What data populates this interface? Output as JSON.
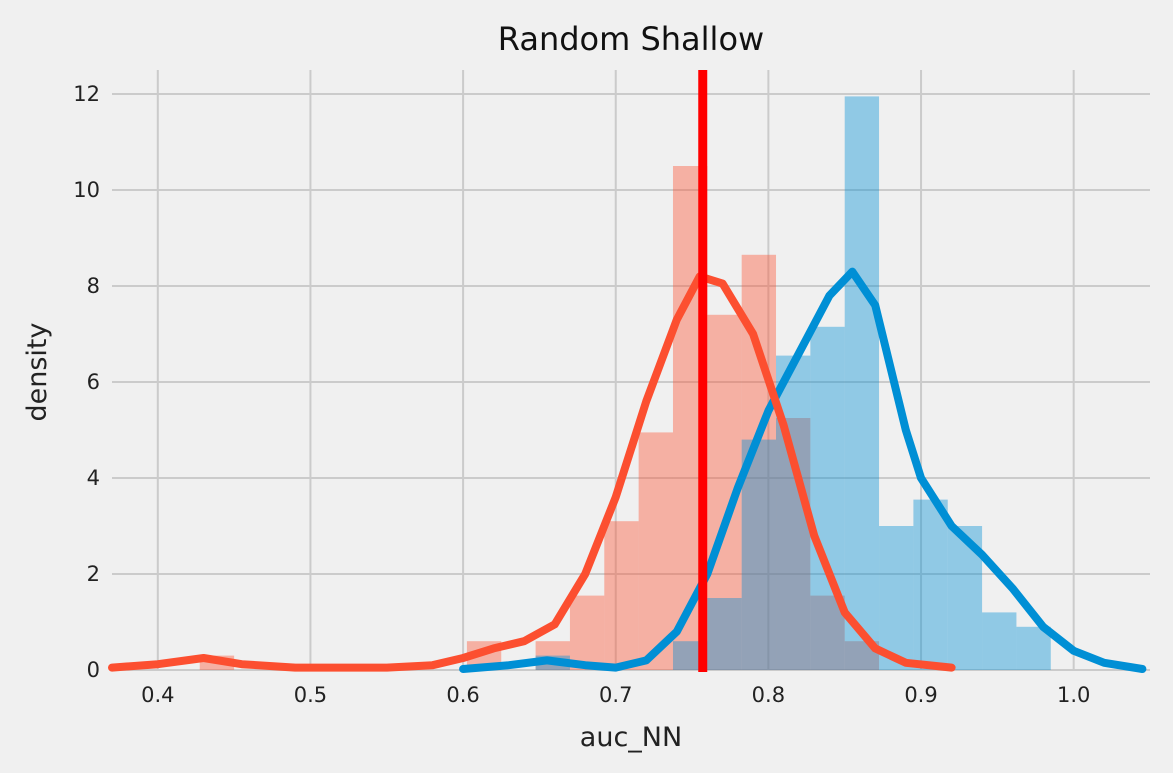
{
  "chart_data": {
    "type": "histogram",
    "title": "Random Shallow",
    "xlabel": "auc_NN",
    "ylabel": "density",
    "xlim": [
      0.37,
      1.05
    ],
    "ylim": [
      0,
      12.5
    ],
    "x_ticks": [
      "0.4",
      "0.5",
      "0.6",
      "0.7",
      "0.8",
      "0.9",
      "1.0"
    ],
    "x_tick_values": [
      0.4,
      0.5,
      0.6,
      0.7,
      0.8,
      0.9,
      1.0
    ],
    "y_ticks": [
      "0",
      "2",
      "4",
      "6",
      "8",
      "10",
      "12"
    ],
    "y_tick_values": [
      0,
      2,
      4,
      6,
      8,
      10,
      12
    ],
    "grid": true,
    "colors": {
      "background": "#f0f0f0",
      "grid": "#cbcbcb",
      "blue_line": "#008fd5",
      "blue_bars": "#8ec8e6",
      "red_line": "#fc4f30",
      "red_bars": "#f4a99c",
      "overlap_bars": "#b9979b",
      "vline": "#ff0000"
    },
    "series": [
      {
        "color": "#fc4f30",
        "bin_width": 0.0225,
        "bins": [
          {
            "x0": 0.4275,
            "h": 0.3
          },
          {
            "x0": 0.6025,
            "h": 0.6
          },
          {
            "x0": 0.6475,
            "h": 0.6
          },
          {
            "x0": 0.67,
            "h": 1.55
          },
          {
            "x0": 0.6925,
            "h": 3.1
          },
          {
            "x0": 0.715,
            "h": 4.95
          },
          {
            "x0": 0.7375,
            "h": 10.5
          },
          {
            "x0": 0.76,
            "h": 7.4
          },
          {
            "x0": 0.7825,
            "h": 8.65
          },
          {
            "x0": 0.805,
            "h": 5.25
          },
          {
            "x0": 0.8275,
            "h": 1.55
          },
          {
            "x0": 0.85,
            "h": 0.6
          }
        ],
        "kde": [
          [
            0.37,
            0.05
          ],
          [
            0.4,
            0.12
          ],
          [
            0.43,
            0.25
          ],
          [
            0.455,
            0.12
          ],
          [
            0.49,
            0.05
          ],
          [
            0.55,
            0.05
          ],
          [
            0.58,
            0.1
          ],
          [
            0.6,
            0.25
          ],
          [
            0.62,
            0.45
          ],
          [
            0.64,
            0.6
          ],
          [
            0.66,
            0.95
          ],
          [
            0.68,
            2.0
          ],
          [
            0.7,
            3.6
          ],
          [
            0.72,
            5.6
          ],
          [
            0.74,
            7.3
          ],
          [
            0.755,
            8.2
          ],
          [
            0.77,
            8.05
          ],
          [
            0.79,
            7.0
          ],
          [
            0.81,
            5.1
          ],
          [
            0.83,
            2.8
          ],
          [
            0.85,
            1.2
          ],
          [
            0.87,
            0.45
          ],
          [
            0.89,
            0.15
          ],
          [
            0.92,
            0.05
          ]
        ]
      },
      {
        "color": "#008fd5",
        "bin_width": 0.0225,
        "bins": [
          {
            "x0": 0.6475,
            "h": 0.3
          },
          {
            "x0": 0.7375,
            "h": 0.6
          },
          {
            "x0": 0.76,
            "h": 1.5
          },
          {
            "x0": 0.7825,
            "h": 4.8
          },
          {
            "x0": 0.805,
            "h": 6.55
          },
          {
            "x0": 0.8275,
            "h": 7.15
          },
          {
            "x0": 0.85,
            "h": 11.95
          },
          {
            "x0": 0.8725,
            "h": 3.0
          },
          {
            "x0": 0.895,
            "h": 3.55
          },
          {
            "x0": 0.9175,
            "h": 3.0
          },
          {
            "x0": 0.94,
            "h": 1.2
          },
          {
            "x0": 0.9625,
            "h": 0.9
          }
        ],
        "kde": [
          [
            0.6,
            0.02
          ],
          [
            0.63,
            0.1
          ],
          [
            0.655,
            0.2
          ],
          [
            0.68,
            0.1
          ],
          [
            0.7,
            0.05
          ],
          [
            0.72,
            0.2
          ],
          [
            0.74,
            0.8
          ],
          [
            0.76,
            2.0
          ],
          [
            0.78,
            3.8
          ],
          [
            0.8,
            5.4
          ],
          [
            0.82,
            6.6
          ],
          [
            0.84,
            7.8
          ],
          [
            0.855,
            8.3
          ],
          [
            0.87,
            7.6
          ],
          [
            0.88,
            6.3
          ],
          [
            0.89,
            5.0
          ],
          [
            0.9,
            4.0
          ],
          [
            0.92,
            3.0
          ],
          [
            0.94,
            2.4
          ],
          [
            0.96,
            1.7
          ],
          [
            0.98,
            0.9
          ],
          [
            1.0,
            0.4
          ],
          [
            1.02,
            0.15
          ],
          [
            1.045,
            0.02
          ]
        ]
      }
    ],
    "vline": {
      "x": 0.757
    }
  }
}
